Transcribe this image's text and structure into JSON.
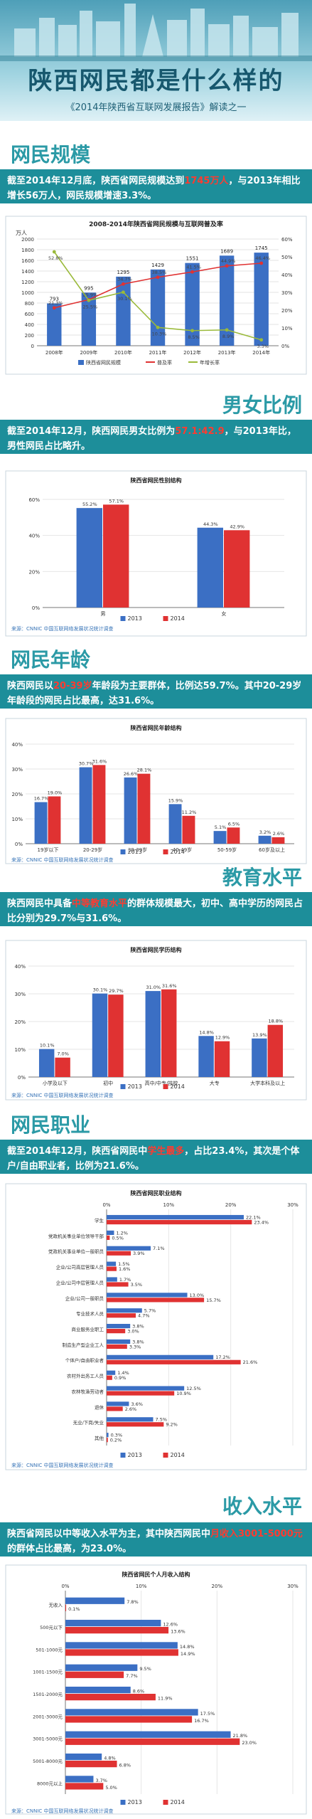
{
  "header": {
    "title": "陕西网民都是什么样的",
    "subtitle": "《2014年陕西省互联网发展报告》解读之一"
  },
  "colors": {
    "blue": "#3b6fc4",
    "red": "#e03232",
    "green": "#9aba3a",
    "teal": "#1d8e9a"
  },
  "sections": {
    "scale": {
      "title": "网民规模",
      "text_pre": "截至2014年12月底，陕西省网民规模达到",
      "text_hl": "1745万人",
      "text_post": "，与2013年相比增长56万人，网民规模增速3.3%。"
    },
    "gender": {
      "title": "男女比例",
      "text_pre": "截至2014年12月，陕西网民男女比例为",
      "text_hl": "57.1:42.9",
      "text_post": "，与2013年比，男性网民占比略升。"
    },
    "age": {
      "title": "网民年龄",
      "text_pre": "陕西网民以",
      "text_hl": "20-39岁",
      "text_post": "年龄段为主要群体，比例达59.7%。其中20-29岁年龄段的网民占比最高，达31.6%。"
    },
    "education": {
      "title": "教育水平",
      "text_pre": "陕西网民中具备",
      "text_hl": "中等教育水平",
      "text_post": "的群体规模最大，初中、高中学历的网民占比分别为29.7%与31.6%。"
    },
    "occupation": {
      "title": "网民职业",
      "text_pre": "截至2014年12月，陕西省网民中",
      "text_hl": "学生最多",
      "text_post": "，占比23.4%，其次是个体户/自由职业者，比例为21.6%。"
    },
    "income": {
      "title": "收入水平",
      "text_pre": "陕西省网民以中等收入水平为主，其中陕西网民中",
      "text_hl": "月收入3001-5000元",
      "text_post": "的群体占比最高，为23.0%。"
    }
  },
  "source_text": "来源：CNNIC 中国互联网络发展状况统计调查",
  "chart_data": [
    {
      "type": "bar",
      "title": "2008-2014年陕西省网民规模与互联网普及率",
      "ylabel": "万人",
      "ylim": [
        0,
        2000
      ],
      "yticks": [
        0,
        200,
        400,
        600,
        800,
        1000,
        1200,
        1400,
        1600,
        1800,
        2000
      ],
      "y2lim": [
        0,
        60
      ],
      "y2ticks": [
        "0%",
        "10%",
        "20%",
        "30%",
        "40%",
        "50%",
        "60%"
      ],
      "categories": [
        "2008年",
        "2009年",
        "2010年",
        "2011年",
        "2012年",
        "2013年",
        "2014年"
      ],
      "series": [
        {
          "name": "陕西省网民规模",
          "type": "bar",
          "values": [
            793,
            995,
            1295,
            1429,
            1551,
            1689,
            1745
          ],
          "labels": [
            "793",
            "995",
            "1295",
            "1429",
            "1551",
            "1689",
            "1745"
          ]
        },
        {
          "name": "普及率",
          "type": "line",
          "values": [
            21.3,
            25.9,
            34.7,
            38.5,
            41.5,
            44.9,
            46.4
          ],
          "labels": [
            "21.3%",
            "25.9%",
            "34.7%",
            "38.5%",
            "41.5%",
            "44.9%",
            "46.4%"
          ]
        },
        {
          "name": "年增长率",
          "type": "line",
          "values": [
            52.8,
            25.5,
            30.1,
            10.3,
            8.5,
            8.9,
            3.3
          ],
          "labels": [
            "52.8%",
            "25.5%",
            "30.1%",
            "10.3%",
            "8.5%",
            "8.9%",
            "3.3%"
          ]
        }
      ]
    },
    {
      "type": "bar",
      "title": "陕西省网民性别结构",
      "ylim": [
        0,
        60
      ],
      "yticks": [
        "0%",
        "20%",
        "40%",
        "60%"
      ],
      "categories": [
        "男",
        "女"
      ],
      "series": [
        {
          "name": "2013",
          "values": [
            55.2,
            44.3
          ],
          "labels": [
            "55.2%",
            "44.3%"
          ]
        },
        {
          "name": "2014",
          "values": [
            57.1,
            42.9
          ],
          "labels": [
            "57.1%",
            "42.9%"
          ]
        }
      ]
    },
    {
      "type": "bar",
      "title": "陕西省网民年龄结构",
      "ylim": [
        0,
        40
      ],
      "yticks": [
        "0%",
        "10%",
        "20%",
        "30%",
        "40%"
      ],
      "categories": [
        "19岁以下",
        "20-29岁",
        "30-39岁",
        "40-49岁",
        "50-59岁",
        "60岁及以上"
      ],
      "series": [
        {
          "name": "2013",
          "values": [
            16.7,
            30.7,
            26.6,
            15.9,
            5.1,
            3.2
          ],
          "labels": [
            "16.7%",
            "30.7%",
            "26.6%",
            "15.9%",
            "5.1%",
            "3.2%"
          ]
        },
        {
          "name": "2014",
          "values": [
            19.0,
            31.6,
            28.1,
            11.2,
            6.5,
            2.6
          ],
          "labels": [
            "19.0%",
            "31.6%",
            "28.1%",
            "11.2%",
            "6.5%",
            "2.6%"
          ]
        }
      ]
    },
    {
      "type": "bar",
      "title": "陕西省网民学历结构",
      "ylim": [
        0,
        40
      ],
      "yticks": [
        "0%",
        "10%",
        "20%",
        "30%",
        "40%"
      ],
      "categories": [
        "小学及以下",
        "初中",
        "高中/中专/技校",
        "大专",
        "大学本科及以上"
      ],
      "series": [
        {
          "name": "2013",
          "values": [
            10.1,
            30.1,
            31.0,
            14.8,
            13.9
          ],
          "labels": [
            "10.1%",
            "30.1%",
            "31.0%",
            "14.8%",
            "13.9%"
          ]
        },
        {
          "name": "2014",
          "values": [
            7.0,
            29.7,
            31.6,
            12.9,
            18.8
          ],
          "labels": [
            "7.0%",
            "29.7%",
            "31.6%",
            "12.9%",
            "18.8%"
          ]
        }
      ]
    },
    {
      "type": "bar",
      "orientation": "horizontal",
      "title": "陕西省网民职业结构",
      "xlim": [
        0,
        30
      ],
      "xticks": [
        "0%",
        "10%",
        "20%",
        "30%"
      ],
      "categories": [
        "学生",
        "党政机关事业单位领导干部",
        "党政机关事业单位一般职员",
        "企业/公司高层管理人员",
        "企业/公司中层管理人员",
        "企业/公司一般职员",
        "专业技术人员",
        "商业服务业职工",
        "制造生产型企业工人",
        "个体户/自由职业者",
        "农村外出务工人员",
        "农林牧渔劳动者",
        "退休",
        "无业/下岗/失业",
        "其他"
      ],
      "series": [
        {
          "name": "2013",
          "values": [
            22.1,
            1.2,
            7.1,
            1.5,
            1.7,
            13.0,
            5.7,
            3.8,
            3.8,
            17.2,
            1.4,
            12.5,
            3.6,
            7.5,
            0.3
          ],
          "labels": [
            "22.1%",
            "1.2%",
            "7.1%",
            "1.5%",
            "1.7%",
            "13.0%",
            "5.7%",
            "3.8%",
            "3.8%",
            "17.2%",
            "1.4%",
            "12.5%",
            "3.6%",
            "7.5%",
            "0.3%"
          ]
        },
        {
          "name": "2014",
          "values": [
            23.4,
            0.5,
            3.9,
            1.6,
            3.5,
            15.7,
            4.7,
            3.0,
            3.3,
            21.6,
            0.9,
            10.9,
            2.6,
            9.2,
            0.2
          ],
          "labels": [
            "23.4%",
            "0.5%",
            "3.9%",
            "1.6%",
            "3.5%",
            "15.7%",
            "4.7%",
            "3.0%",
            "3.3%",
            "21.6%",
            "0.9%",
            "10.9%",
            "2.6%",
            "9.2%",
            "0.2%"
          ]
        }
      ]
    },
    {
      "type": "bar",
      "orientation": "horizontal",
      "title": "陕西省网民个人月收入结构",
      "xlim": [
        0,
        30
      ],
      "xticks": [
        "0%",
        "10%",
        "20%",
        "30%"
      ],
      "categories": [
        "无收入",
        "500元以下",
        "501-1000元",
        "1001-1500元",
        "1501-2000元",
        "2001-3000元",
        "3001-5000元",
        "5001-8000元",
        "8000元以上"
      ],
      "series": [
        {
          "name": "2013",
          "values": [
            7.8,
            12.6,
            14.8,
            9.5,
            8.6,
            17.5,
            21.8,
            4.8,
            3.7
          ],
          "labels": [
            "7.8%",
            "12.6%",
            "14.8%",
            "9.5%",
            "8.6%",
            "17.5%",
            "21.8%",
            "4.8%",
            "3.7%"
          ]
        },
        {
          "name": "2014",
          "values": [
            0.1,
            13.6,
            14.9,
            7.7,
            11.9,
            16.7,
            23.0,
            6.8,
            5.0
          ],
          "labels": [
            "0.1%",
            "13.6%",
            "14.9%",
            "7.7%",
            "11.9%",
            "16.7%",
            "23.0%",
            "6.8%",
            "5.0%"
          ]
        }
      ]
    }
  ]
}
